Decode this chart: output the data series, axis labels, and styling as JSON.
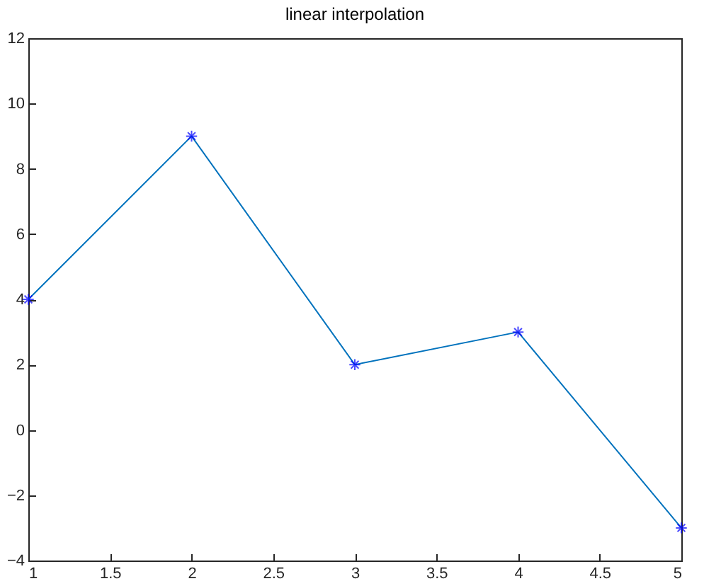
{
  "chart_data": {
    "type": "line",
    "title": "linear interpolation",
    "x": [
      1,
      2,
      3,
      4,
      5
    ],
    "series": [
      {
        "color": "#0072bd",
        "values": [
          4,
          9,
          2,
          3,
          -3
        ]
      },
      {
        "type": "scatter",
        "marker": "cross",
        "color": "#0000ff",
        "values": [
          4,
          9,
          2,
          3,
          -3
        ]
      }
    ],
    "xlim": [
      1,
      5
    ],
    "xticks": [
      1,
      1.5,
      2,
      2.5,
      3,
      3.5,
      4,
      4.5,
      5
    ],
    "ylim": [
      -4,
      12
    ],
    "yticks": [
      -4,
      -2,
      0,
      2,
      4,
      6,
      8,
      10,
      12
    ],
    "grid": false
  }
}
